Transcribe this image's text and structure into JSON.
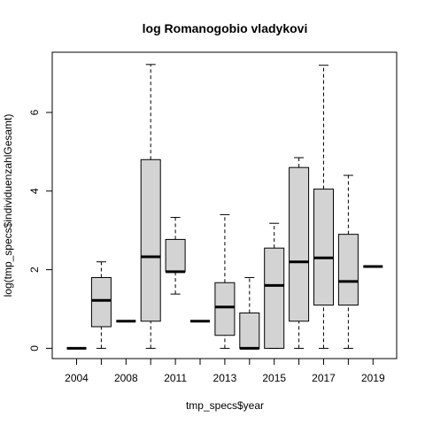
{
  "chart_data": {
    "type": "boxplot",
    "title": "log Romanogobio vladykovi",
    "xlabel": "tmp_specs$year",
    "ylabel": "log(tmp_specs$individuenzahlGesamt)",
    "ylim": [
      -0.3,
      7.5
    ],
    "yticks": [
      0,
      2,
      4,
      6
    ],
    "categories": [
      "2004",
      "2006",
      "2008",
      "2010",
      "2011",
      "2012",
      "2013",
      "2014",
      "2015",
      "2016",
      "2017",
      "2018",
      "2019"
    ],
    "x_tick_labels_shown": [
      "2004",
      "2008",
      "2011",
      "2013",
      "2015",
      "2017",
      "2019"
    ],
    "box_fill": "#d3d3d3",
    "boxes": [
      {
        "category": "2004",
        "min": 0,
        "q1": 0,
        "median": 0,
        "q3": 0,
        "max": 0
      },
      {
        "category": "2006",
        "min": 0,
        "q1": 0.55,
        "median": 1.22,
        "q3": 1.8,
        "max": 2.2
      },
      {
        "category": "2008",
        "min": 0.69,
        "q1": 0.69,
        "median": 0.69,
        "q3": 0.69,
        "max": 0.69
      },
      {
        "category": "2010",
        "min": 0,
        "q1": 0.69,
        "median": 2.33,
        "q3": 4.8,
        "max": 7.22
      },
      {
        "category": "2011",
        "min": 1.38,
        "q1": 1.95,
        "median": 1.95,
        "q3": 2.77,
        "max": 3.33
      },
      {
        "category": "2012",
        "min": 0.69,
        "q1": 0.69,
        "median": 0.69,
        "q3": 0.69,
        "max": 0.69
      },
      {
        "category": "2013",
        "min": 0,
        "q1": 0.33,
        "median": 1.05,
        "q3": 1.67,
        "max": 3.4
      },
      {
        "category": "2014",
        "min": 0,
        "q1": 0,
        "median": 0,
        "q3": 0.9,
        "max": 1.8
      },
      {
        "category": "2015",
        "min": 0,
        "q1": 0,
        "median": 1.6,
        "q3": 2.55,
        "max": 3.18
      },
      {
        "category": "2016",
        "min": 0,
        "q1": 0.69,
        "median": 2.2,
        "q3": 4.6,
        "max": 4.85
      },
      {
        "category": "2017",
        "min": 0,
        "q1": 1.1,
        "median": 2.3,
        "q3": 4.05,
        "max": 7.2
      },
      {
        "category": "2018",
        "min": 0,
        "q1": 1.1,
        "median": 1.7,
        "q3": 2.9,
        "max": 4.4
      },
      {
        "category": "2019",
        "min": 2.08,
        "q1": 2.08,
        "median": 2.08,
        "q3": 2.08,
        "max": 2.08
      }
    ]
  }
}
